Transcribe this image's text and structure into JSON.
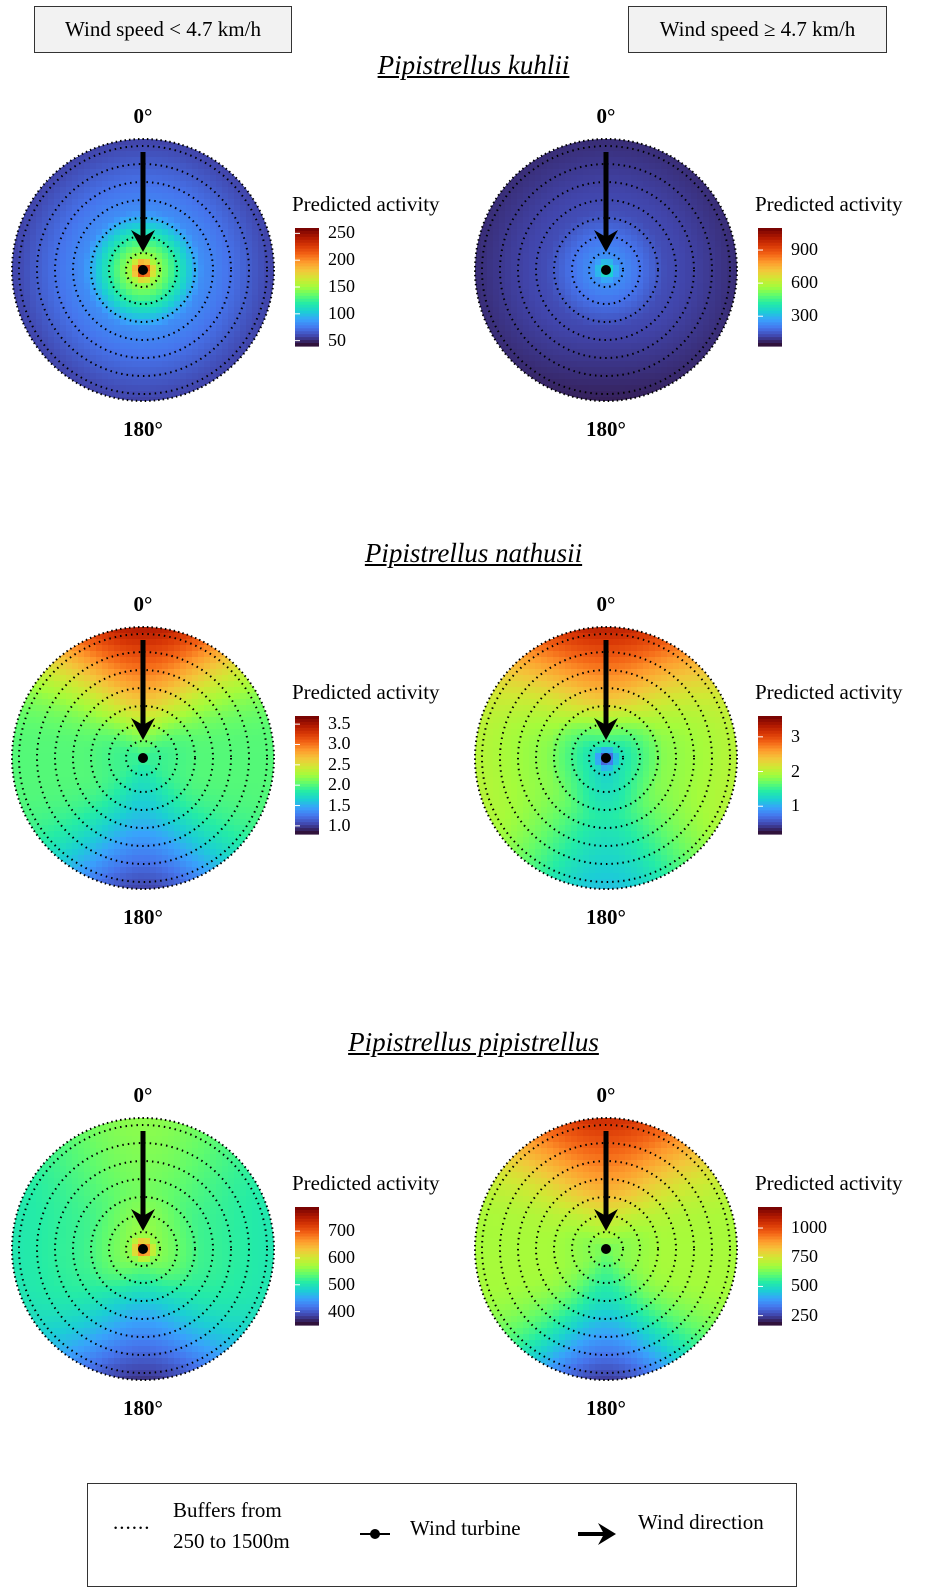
{
  "header": {
    "left_label": "Wind speed < 4.7 km/h",
    "right_label": "Wind speed ≥ 4.7 km/h"
  },
  "key": {
    "buffers_symbol": "......",
    "buffers_line1": "Buffers from",
    "buffers_line2": "250 to 1500m",
    "turbine_label": "Wind turbine",
    "wind_label": "Wind direction"
  },
  "colors": {
    "colormap": [
      "#30123b",
      "#4145ab",
      "#4675ed",
      "#39a2fc",
      "#1bcfd4",
      "#24eca6",
      "#61fc6c",
      "#a4fc3b",
      "#d1e834",
      "#f3c63a",
      "#fe9b2d",
      "#f36315",
      "#d93806",
      "#b11901",
      "#7a0402"
    ],
    "arrow": "#000000",
    "buffer_ring": "#000000"
  },
  "chart_data": [
    {
      "type": "heatmap",
      "title": "Pipistrellus kuhlii",
      "condition": "Wind speed < 4.7 km/h",
      "angle_labels": [
        "0°",
        "180°"
      ],
      "legend_title": "Predicted activity",
      "scale_range": [
        40,
        260
      ],
      "ticks": [
        250,
        200,
        150,
        100,
        50
      ],
      "tick_labels": [
        "250",
        "200",
        "150",
        "100",
        "50"
      ],
      "field": {
        "center": 250,
        "near": 150,
        "mid": 80,
        "edge": 55,
        "north_boost": 0,
        "south_drop": 0
      }
    },
    {
      "type": "heatmap",
      "title": "Pipistrellus kuhlii",
      "condition": "Wind speed ≥ 4.7 km/h",
      "angle_labels": [
        "0°",
        "180°"
      ],
      "legend_title": "Predicted activity",
      "scale_range": [
        30,
        1100
      ],
      "ticks": [
        900,
        600,
        300
      ],
      "tick_labels": [
        "900",
        "600",
        "300"
      ],
      "field": {
        "center": 420,
        "near": 230,
        "mid": 120,
        "edge": 70,
        "north_boost": 0,
        "south_drop": 20
      }
    },
    {
      "type": "heatmap",
      "title": "Pipistrellus nathusii",
      "condition": "Wind speed < 4.7 km/h",
      "angle_labels": [
        "0°",
        "180°"
      ],
      "legend_title": "Predicted activity",
      "scale_range": [
        0.8,
        3.7
      ],
      "ticks": [
        3.5,
        3.0,
        2.5,
        2.0,
        1.5,
        1.0
      ],
      "tick_labels": [
        "3.5",
        "3.0",
        "2.5",
        "2.0",
        "1.5",
        "1.0"
      ],
      "field": {
        "center": 1.9,
        "near": 1.9,
        "mid": 2.0,
        "edge": 2.0,
        "north_boost": 1.5,
        "south_drop": 1.0
      }
    },
    {
      "type": "heatmap",
      "title": "Pipistrellus nathusii",
      "condition": "Wind speed ≥ 4.7 km/h",
      "angle_labels": [
        "0°",
        "180°"
      ],
      "legend_title": "Predicted activity",
      "scale_range": [
        0.2,
        3.6
      ],
      "ticks": [
        3,
        2,
        1
      ],
      "tick_labels": [
        "3",
        "2",
        "1"
      ],
      "field": {
        "center": 0.3,
        "near": 1.3,
        "mid": 1.8,
        "edge": 2.0,
        "north_boost": 1.3,
        "south_drop": 0.9
      }
    },
    {
      "type": "heatmap",
      "title": "Pipistrellus pipistrellus",
      "condition": "Wind speed < 4.7 km/h",
      "angle_labels": [
        "0°",
        "180°"
      ],
      "legend_title": "Predicted activity",
      "scale_range": [
        350,
        790
      ],
      "ticks": [
        700,
        600,
        500,
        400
      ],
      "tick_labels": [
        "700",
        "600",
        "500",
        "400"
      ],
      "field": {
        "center": 730,
        "near": 560,
        "mid": 520,
        "edge": 500,
        "north_boost": 60,
        "south_drop": 130
      }
    },
    {
      "type": "heatmap",
      "title": "Pipistrellus pipistrellus",
      "condition": "Wind speed ≥ 4.7 km/h",
      "angle_labels": [
        "0°",
        "180°"
      ],
      "legend_title": "Predicted activity",
      "scale_range": [
        170,
        1180
      ],
      "ticks": [
        1000,
        750,
        500,
        250
      ],
      "tick_labels": [
        "1000",
        "750",
        "500",
        "250"
      ],
      "field": {
        "center": 620,
        "near": 640,
        "mid": 680,
        "edge": 680,
        "north_boost": 380,
        "south_drop": 450
      }
    }
  ]
}
